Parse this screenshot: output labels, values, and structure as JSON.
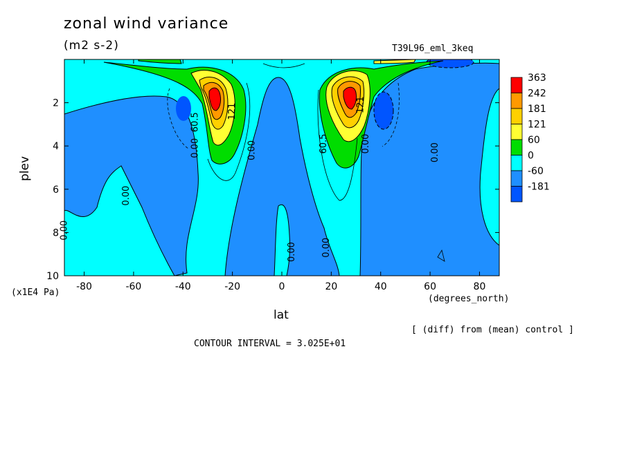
{
  "header": {
    "title": "zonal wind variance",
    "units": "(m2 s-2)",
    "experiment": "T39L96_eml_3keq",
    "note": "[ (diff) from (mean) control ]",
    "contour_interval": "CONTOUR INTERVAL = 3.025E+01"
  },
  "chart_data": {
    "type": "heatmap",
    "xlabel": "lat",
    "xunit": "(degrees_north)",
    "ylabel": "plev",
    "yunit": "(x1E4 Pa)",
    "xlim": [
      -88,
      88
    ],
    "ylim": [
      10,
      0
    ],
    "x_ticks": [
      -80,
      -60,
      -40,
      -20,
      0,
      20,
      40,
      60,
      80
    ],
    "x_tick_labels": [
      "-80",
      "-60",
      "-40",
      "-20",
      "0",
      "20",
      "40",
      "60",
      "80"
    ],
    "y_ticks": [
      2,
      4,
      6,
      8,
      10
    ],
    "y_tick_labels": [
      "2",
      "4",
      "6",
      "8",
      "10"
    ],
    "colorbar": {
      "labels": [
        "363",
        "242",
        "181",
        "121",
        "60",
        "0",
        "-60",
        "-181"
      ],
      "colors": [
        "#ff0000",
        "#ff9900",
        "#ffd000",
        "#ffff33",
        "#00dd00",
        "#00ffff",
        "#1f8fff",
        "#0055ff"
      ]
    },
    "contour_labels": [
      {
        "text": "0.00",
        "lat": -87,
        "p": 7.9
      },
      {
        "text": "0.00",
        "lat": -62,
        "p": 6.3
      },
      {
        "text": "0.00",
        "lat": -34,
        "p": 4.1
      },
      {
        "text": "60.5",
        "lat": -34,
        "p": 2.9
      },
      {
        "text": "121",
        "lat": -19,
        "p": 2.4
      },
      {
        "text": "0.00",
        "lat": -11,
        "p": 4.2
      },
      {
        "text": "0.00",
        "lat": 5,
        "p": 8.9
      },
      {
        "text": "0.00",
        "lat": 19,
        "p": 8.7
      },
      {
        "text": "60.5",
        "lat": 18,
        "p": 3.9
      },
      {
        "text": "121",
        "lat": 33,
        "p": 2.1
      },
      {
        "text": "0.00",
        "lat": 35,
        "p": 3.9
      },
      {
        "text": "0.00",
        "lat": 63,
        "p": 4.3
      }
    ]
  }
}
